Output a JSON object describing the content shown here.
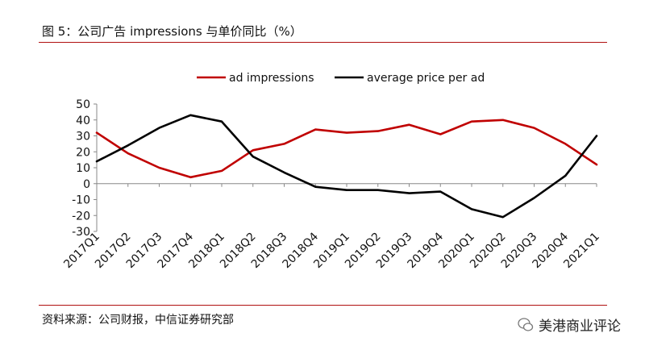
{
  "figure": {
    "title": "图 5：公司广告 impressions 与单价同比（%）",
    "source": "资料来源：公司财报，中信证券研究部",
    "watermark": "美港商业评论"
  },
  "chart_data": {
    "type": "line",
    "categories": [
      "2017Q1",
      "2017Q2",
      "2017Q3",
      "2017Q4",
      "2018Q1",
      "2018Q2",
      "2018Q3",
      "2018Q4",
      "2019Q1",
      "2019Q2",
      "2019Q3",
      "2019Q4",
      "2020Q1",
      "2020Q2",
      "2020Q3",
      "2020Q4",
      "2021Q1"
    ],
    "series": [
      {
        "name": "ad impressions",
        "color": "#c00000",
        "values": [
          32,
          19,
          10,
          4,
          8,
          21,
          25,
          34,
          32,
          33,
          37,
          31,
          39,
          40,
          35,
          25,
          12
        ]
      },
      {
        "name": "average price per ad",
        "color": "#000000",
        "values": [
          14,
          24,
          35,
          43,
          39,
          17,
          7,
          -2,
          -4,
          -4,
          -6,
          -5,
          -16,
          -21,
          -9,
          5,
          30
        ]
      }
    ],
    "ylim": [
      -30,
      50
    ],
    "yticks": [
      -30,
      -20,
      -10,
      0,
      10,
      20,
      30,
      40,
      50
    ],
    "legend_position": "top"
  }
}
